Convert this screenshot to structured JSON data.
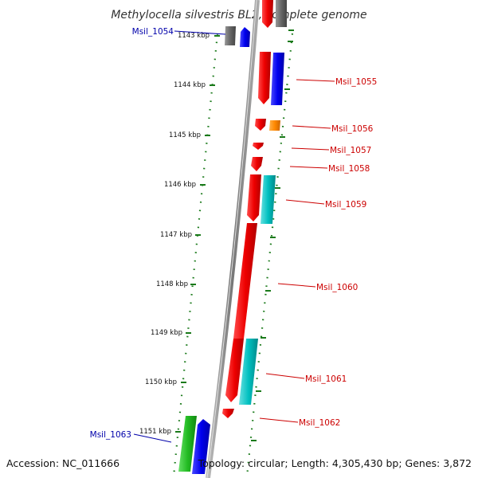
{
  "title": "Methylocella silvestris BL2, complete genome",
  "footer": {
    "accession": "Accession: NC_011666",
    "topology": "Topology: circular; Length: 4,305,430 bp; Genes: 3,872"
  },
  "scale_labels": [
    "1143 kbp",
    "1144 kbp",
    "1145 kbp",
    "1146 kbp",
    "1147 kbp",
    "1148 kbp",
    "1149 kbp",
    "1150 kbp",
    "1151 kbp"
  ],
  "gene_labels": [
    {
      "id": "Msil_1054",
      "color": "#0000aa"
    },
    {
      "id": "Msil_1055",
      "color": "#cc0000"
    },
    {
      "id": "Msil_1056",
      "color": "#cc0000"
    },
    {
      "id": "Msil_1057",
      "color": "#cc0000"
    },
    {
      "id": "Msil_1058",
      "color": "#cc0000"
    },
    {
      "id": "Msil_1059",
      "color": "#cc0000"
    },
    {
      "id": "Msil_1060",
      "color": "#cc0000"
    },
    {
      "id": "Msil_1061",
      "color": "#cc0000"
    },
    {
      "id": "Msil_1062",
      "color": "#cc0000"
    },
    {
      "id": "Msil_1063",
      "color": "#0000aa"
    }
  ],
  "colors": {
    "backbone": "#808080",
    "scale_dots": "#1a7a1a",
    "gene_red": "#ee0000",
    "gene_blue": "#0000ee",
    "gene_cyan": "#00bbbb",
    "gene_orange": "#ff8800",
    "gene_green": "#22bb22",
    "gene_gray": "#666666"
  }
}
